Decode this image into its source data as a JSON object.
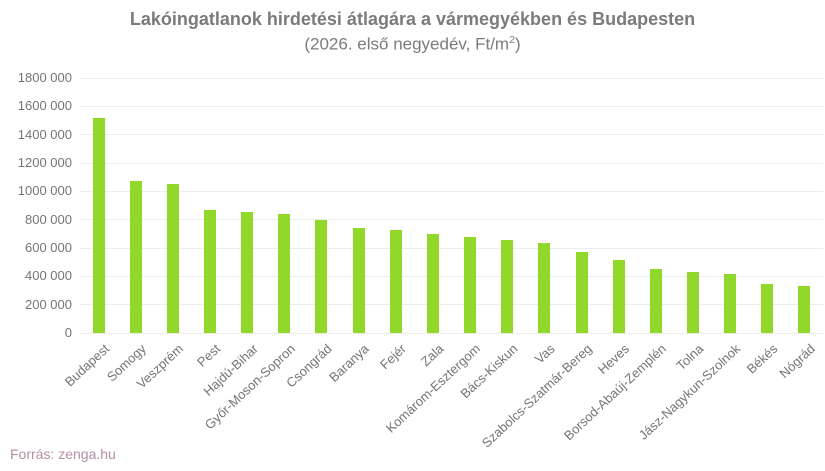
{
  "colors": {
    "background": "#ffffff",
    "bar": "#92d82b",
    "grid": "#ececec",
    "axis_text": "#757575",
    "title_text": "#7b7b7b",
    "source_text": "#b78da6"
  },
  "footer": {
    "source": "Forrás: zenga.hu"
  },
  "chart_data": {
    "type": "bar",
    "title": "Lakóingatlanok hirdetési átlagára a vármegyékben és Budapesten",
    "subtitle": "(2026. első negyedév, Ft/m2)",
    "subtitle_parts": {
      "prefix": "(2026. első negyedév, Ft/m",
      "sup": "2",
      "suffix": ")"
    },
    "categories": [
      "Budapest",
      "Somogy",
      "Veszprém",
      "Pest",
      "Hajdú-Bihar",
      "Győr-Moson-Sopron",
      "Csongrád",
      "Baranya",
      "Fejér",
      "Zala",
      "Komárom-Esztergom",
      "Bács-Kiskun",
      "Vas",
      "Szabolcs-Szatmár-Bereg",
      "Heves",
      "Borsod-Abaúj-Zemplén",
      "Tolna",
      "Jász-Nagykun-Szolnok",
      "Békés",
      "Nógrád"
    ],
    "values": [
      1520000,
      1070000,
      1050000,
      870000,
      855000,
      840000,
      800000,
      740000,
      730000,
      700000,
      675000,
      660000,
      635000,
      570000,
      515000,
      450000,
      430000,
      415000,
      345000,
      330000
    ],
    "xlabel": "",
    "ylabel": "",
    "ylim": [
      0,
      1800000
    ],
    "ytick_values": [
      0,
      200000,
      400000,
      600000,
      800000,
      1000000,
      1200000,
      1400000,
      1600000,
      1800000
    ],
    "ytick_labels": [
      "0",
      "200 000",
      "400 000",
      "600 000",
      "800 000",
      "1000 000",
      "1200 000",
      "1400 000",
      "1600 000",
      "1800 000"
    ],
    "grid": true,
    "legend": "none",
    "bar_color": "#92d82b",
    "x_label_rotation_deg": -43,
    "source": "Forrás: zenga.hu"
  }
}
